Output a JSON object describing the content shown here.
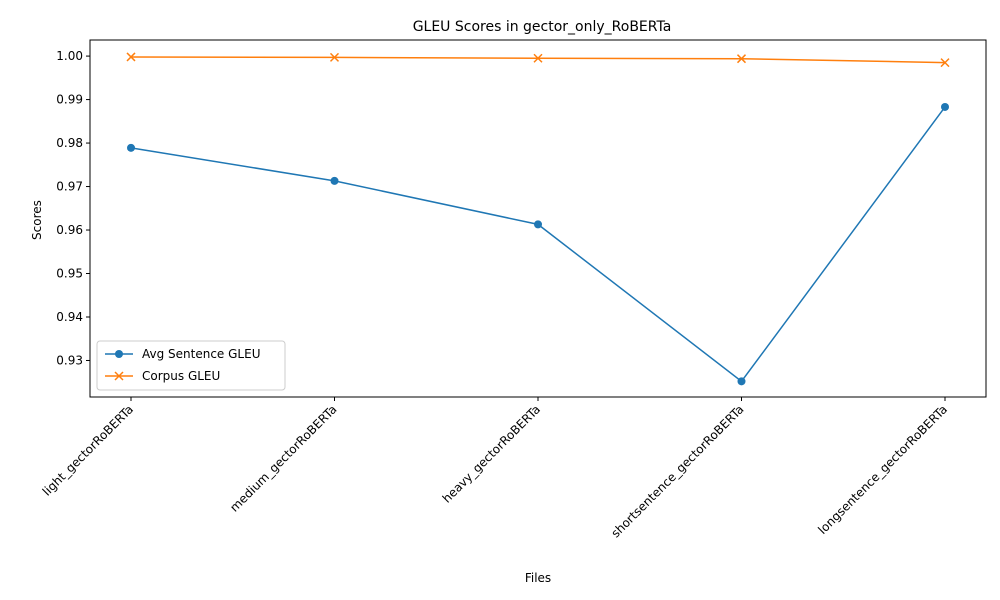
{
  "chart_data": {
    "type": "line",
    "title": "GLEU Scores in gector_only_RoBERTa",
    "xlabel": "Files",
    "ylabel": "Scores",
    "categories": [
      "light_gectorRoBERTa",
      "medium_gectorRoBERTa",
      "heavy_gectorRoBERTa",
      "shortsentence_gectorRoBERTa",
      "longsentence_gectorRoBERTa"
    ],
    "series": [
      {
        "name": "Avg Sentence GLEU",
        "values": [
          0.9789,
          0.9713,
          0.9613,
          0.9252,
          0.9883
        ],
        "color": "#1f77b4",
        "marker": "circle"
      },
      {
        "name": "Corpus GLEU",
        "values": [
          0.9998,
          0.9997,
          0.9995,
          0.9994,
          0.9985
        ],
        "color": "#ff7f0e",
        "marker": "x"
      }
    ],
    "ylim": [
      0.9216,
      1.0037
    ],
    "yticks": [
      0.93,
      0.94,
      0.95,
      0.96,
      0.97,
      0.98,
      0.99,
      1.0
    ],
    "ytick_labels": [
      "0.93",
      "0.94",
      "0.95",
      "0.96",
      "0.97",
      "0.98",
      "0.99",
      "1.00"
    ],
    "grid": false,
    "legend_position": "lower-left"
  }
}
